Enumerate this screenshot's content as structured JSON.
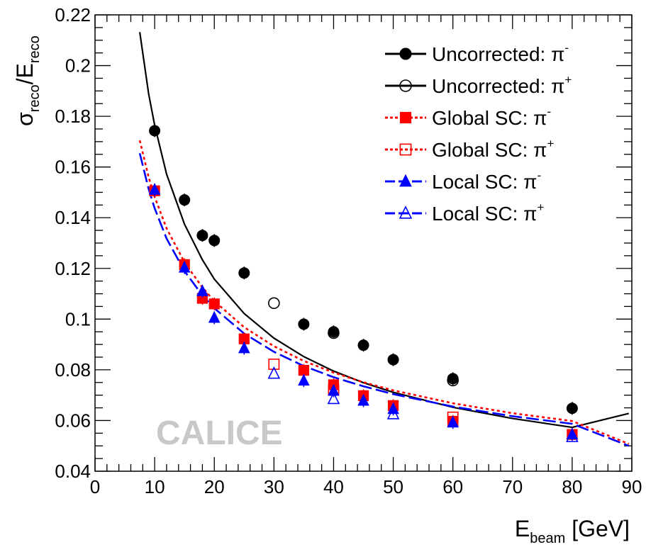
{
  "chart_data": {
    "type": "scatter",
    "title": "",
    "xlabel": {
      "main": "E",
      "sub": "beam",
      "unit": " [GeV]"
    },
    "ylabel": {
      "sigma": "σ",
      "sub1": "reco",
      "slash": "/E",
      "sub2": "reco"
    },
    "xlim": [
      0,
      90
    ],
    "ylim": [
      0.04,
      0.22
    ],
    "x_ticks": [
      0,
      10,
      20,
      30,
      40,
      50,
      60,
      70,
      80,
      90
    ],
    "x_tick_labels": [
      "0",
      "10",
      "20",
      "30",
      "40",
      "50",
      "60",
      "70",
      "80",
      "90"
    ],
    "y_ticks": [
      0.04,
      0.06,
      0.08,
      0.1,
      0.12,
      0.14,
      0.16,
      0.18,
      0.2,
      0.22
    ],
    "y_tick_labels": [
      "0.04",
      "0.06",
      "0.08",
      "0.1",
      "0.12",
      "0.14",
      "0.16",
      "0.18",
      "0.2",
      "0.22"
    ],
    "grid": false,
    "legend_position": "top-right",
    "watermark": "CALICE",
    "series": [
      {
        "name": "Uncorrected: π-",
        "label": "Uncorrected:",
        "particle": "π",
        "charge": "-",
        "color": "#000000",
        "marker": "circle-filled",
        "x": [
          10,
          15,
          18,
          20,
          25,
          35,
          40,
          45,
          50,
          60,
          80
        ],
        "y": [
          0.1743,
          0.147,
          0.133,
          0.131,
          0.1182,
          0.098,
          0.095,
          0.0897,
          0.084,
          0.0765,
          0.0648
        ]
      },
      {
        "name": "Uncorrected: π+",
        "label": "Uncorrected:",
        "particle": "π",
        "charge": "+",
        "color": "#000000",
        "marker": "circle-open",
        "x": [
          30,
          40,
          60
        ],
        "y": [
          0.1063,
          0.0945,
          0.0758
        ]
      },
      {
        "name": "Global SC: π-",
        "label": "Global SC:",
        "particle": "π",
        "charge": "-",
        "color": "#ff0000",
        "marker": "square-filled",
        "x": [
          10,
          15,
          18,
          20,
          25,
          35,
          40,
          45,
          50,
          60,
          80
        ],
        "y": [
          0.1506,
          0.1215,
          0.1082,
          0.106,
          0.0922,
          0.0798,
          0.0741,
          0.0698,
          0.0659,
          0.0597,
          0.0545
        ]
      },
      {
        "name": "Global SC: π+",
        "label": "Global SC:",
        "particle": "π",
        "charge": "+",
        "color": "#ff0000",
        "marker": "square-open",
        "x": [
          30,
          40,
          60
        ],
        "y": [
          0.0822,
          0.0722,
          0.0613
        ]
      },
      {
        "name": "Local SC: π-",
        "label": "Local SC:",
        "particle": "π",
        "charge": "-",
        "color": "#0000ff",
        "marker": "triangle-filled",
        "x": [
          10,
          15,
          18,
          20,
          25,
          35,
          40,
          45,
          50,
          60,
          80
        ],
        "y": [
          0.151,
          0.1203,
          0.111,
          0.1005,
          0.0885,
          0.0757,
          0.0717,
          0.0678,
          0.0645,
          0.0592,
          0.0545
        ]
      },
      {
        "name": "Local SC: π+",
        "label": "Local SC:",
        "particle": "π",
        "charge": "+",
        "color": "#0000ff",
        "marker": "triangle-open",
        "x": [
          30,
          40,
          50,
          80
        ],
        "y": [
          0.0785,
          0.0685,
          0.0625,
          0.0535
        ]
      }
    ],
    "fits": [
      {
        "name": "Uncorrected fit",
        "color": "#000000",
        "style": "solid",
        "x": [
          7.5,
          9,
          10,
          12,
          15,
          18,
          20,
          25,
          30,
          35,
          40,
          45,
          50,
          60,
          70,
          80,
          89.5
        ],
        "y": [
          0.2132,
          0.1887,
          0.1765,
          0.1572,
          0.1374,
          0.1234,
          0.1158,
          0.1022,
          0.0925,
          0.0852,
          0.0795,
          0.0749,
          0.0711,
          0.0652,
          0.0608,
          0.0573,
          0.0628
        ]
      },
      {
        "name": "Global SC fit",
        "color": "#ff0000",
        "style": "dotted",
        "x": [
          7.5,
          9,
          10,
          12,
          15,
          18,
          20,
          25,
          30,
          35,
          40,
          45,
          50,
          60,
          70,
          80,
          89.5
        ],
        "y": [
          0.1705,
          0.1559,
          0.1482,
          0.1358,
          0.1224,
          0.1125,
          0.1071,
          0.0968,
          0.0893,
          0.0835,
          0.0789,
          0.0751,
          0.0719,
          0.0668,
          0.0629,
          0.0598,
          0.0508
        ]
      },
      {
        "name": "Local SC fit",
        "color": "#0000ff",
        "style": "dashed",
        "x": [
          7.5,
          9,
          10,
          12,
          15,
          18,
          20,
          25,
          30,
          35,
          40,
          45,
          50,
          60,
          70,
          80,
          89.5
        ],
        "y": [
          0.1654,
          0.1512,
          0.1437,
          0.1318,
          0.1189,
          0.1094,
          0.1043,
          0.0943,
          0.0871,
          0.0815,
          0.0771,
          0.0735,
          0.0704,
          0.0655,
          0.0617,
          0.0587,
          0.05
        ]
      }
    ]
  }
}
